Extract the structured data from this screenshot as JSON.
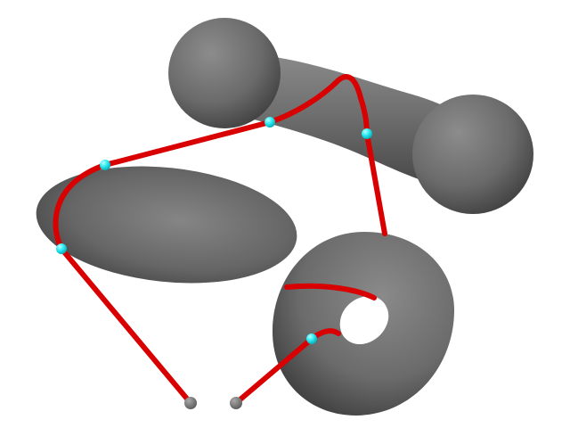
{
  "scene": {
    "background_color": "#ffffff",
    "object_color": "#6e6e6e",
    "path_color": "#e00000",
    "contact_point_color": "#21e6ee",
    "endpoint_color": "#7a7a7a",
    "objects": [
      "dumbbell",
      "ellipsoid",
      "torus"
    ],
    "contact_point_count": 5,
    "endpoint_count": 2
  }
}
